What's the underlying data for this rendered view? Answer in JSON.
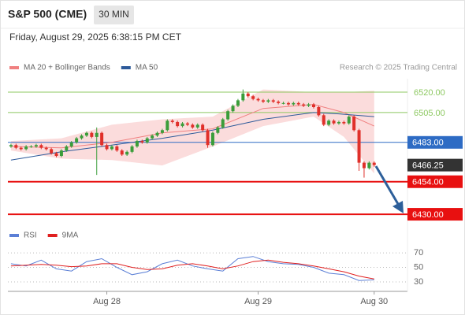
{
  "header": {
    "title": "S&P 500 (CME)",
    "interval": "30 MIN",
    "datetime": "Friday, August 29, 2025 6:38:15 PM CET"
  },
  "chart_data": [
    {
      "type": "candlestick",
      "credit": "Research © 2025 Trading Central",
      "up_color": "#3a9d3a",
      "down_color": "#e0302a",
      "xlim": [
        -0.3,
        78.6
      ],
      "ylim": [
        6422.5,
        6529.9
      ],
      "x": [
        0,
        1,
        2,
        3,
        4,
        5,
        6,
        7,
        8,
        9,
        10,
        11,
        12,
        13,
        14,
        15,
        16,
        17,
        18,
        19,
        20,
        21,
        22,
        23,
        24,
        25,
        26,
        27,
        28,
        29,
        30,
        31,
        32,
        33,
        34,
        35,
        36,
        37,
        38,
        39,
        40,
        41,
        42,
        43,
        44,
        45,
        46,
        47,
        48,
        49,
        50,
        51,
        52,
        53,
        54,
        55,
        56,
        57,
        58,
        59,
        60,
        61,
        62,
        63,
        64,
        65,
        66,
        67,
        68,
        69,
        70,
        71,
        72
      ],
      "open": [
        6480,
        6481,
        6479,
        6478,
        6480,
        6480,
        6481,
        6479,
        6478,
        6475,
        6473,
        6477,
        6480,
        6483,
        6486,
        6488,
        6490,
        6487,
        6490,
        6481,
        6478,
        6480,
        6477,
        6474,
        6476,
        6480,
        6484,
        6483,
        6486,
        6488,
        6490,
        6492,
        6499,
        6498,
        6495,
        6497,
        6496,
        6494,
        6496,
        6492,
        6481,
        6490,
        6494,
        6500,
        6506,
        6510,
        6514,
        6519,
        6517,
        6515,
        6514,
        6513,
        6514,
        6513,
        6512,
        6512,
        6511,
        6512,
        6511,
        6510,
        6511,
        6509,
        6503,
        6496,
        6499,
        6497,
        6498,
        6497,
        6502,
        6492,
        6468,
        6464,
        6468
      ],
      "high": [
        6482,
        6482,
        6480,
        6481,
        6481,
        6482,
        6482,
        6480,
        6479,
        6476,
        6478,
        6481,
        6484,
        6487,
        6489,
        6491,
        6491,
        6494,
        6491,
        6482,
        6481,
        6481,
        6478,
        6477,
        6481,
        6485,
        6485,
        6487,
        6489,
        6491,
        6493,
        6500,
        6500,
        6499,
        6498,
        6498,
        6497,
        6497,
        6497,
        6493,
        6491,
        6495,
        6501,
        6507,
        6511,
        6515,
        6522,
        6520,
        6518,
        6516,
        6515,
        6515,
        6515,
        6514,
        6513,
        6513,
        6513,
        6513,
        6512,
        6512,
        6512,
        6510,
        6504,
        6500,
        6500,
        6499,
        6499,
        6503,
        6503,
        6493,
        6469,
        6469,
        6469
      ],
      "low": [
        6479,
        6478,
        6477,
        6477,
        6479,
        6479,
        6478,
        6477,
        6474,
        6472,
        6472,
        6476,
        6479,
        6482,
        6485,
        6487,
        6486,
        6459,
        6480,
        6477,
        6477,
        6476,
        6473,
        6473,
        6475,
        6479,
        6482,
        6482,
        6485,
        6487,
        6489,
        6491,
        6497,
        6494,
        6494,
        6495,
        6493,
        6493,
        6491,
        6479,
        6480,
        6489,
        6493,
        6499,
        6505,
        6509,
        6513,
        6516,
        6514,
        6513,
        6512,
        6512,
        6512,
        6511,
        6511,
        6510,
        6510,
        6510,
        6509,
        6509,
        6508,
        6502,
        6495,
        6495,
        6496,
        6496,
        6496,
        6496,
        6491,
        6462,
        6457,
        6463,
        6465
      ],
      "close": [
        6481,
        6479,
        6478,
        6480,
        6480,
        6481,
        6479,
        6478,
        6475,
        6473,
        6477,
        6480,
        6483,
        6486,
        6488,
        6490,
        6487,
        6490,
        6481,
        6478,
        6480,
        6477,
        6474,
        6476,
        6480,
        6484,
        6483,
        6486,
        6488,
        6490,
        6492,
        6499,
        6498,
        6495,
        6497,
        6496,
        6494,
        6496,
        6492,
        6481,
        6490,
        6494,
        6500,
        6506,
        6510,
        6514,
        6519,
        6517,
        6515,
        6514,
        6513,
        6514,
        6513,
        6512,
        6512,
        6511,
        6512,
        6511,
        6510,
        6511,
        6509,
        6503,
        6496,
        6499,
        6497,
        6498,
        6497,
        6502,
        6492,
        6468,
        6464,
        6468,
        6466.25
      ],
      "series": [
        {
          "name": "MA 20 + Bollinger Bands",
          "type": "band",
          "color": "#f08080",
          "band_color": "#fbdcdc",
          "x": [
            0,
            10,
            20,
            30,
            40,
            50,
            60,
            66,
            72
          ],
          "values": [
            6480,
            6479,
            6483,
            6490,
            6493,
            6508,
            6511,
            6505,
            6495
          ],
          "upper": [
            6484,
            6486,
            6496,
            6500,
            6502,
            6522,
            6520,
            6520,
            6521
          ],
          "lower": [
            6477,
            6471,
            6470,
            6466,
            6480,
            6495,
            6502,
            6487,
            6460
          ]
        },
        {
          "name": "MA 50",
          "type": "line",
          "color": "#2d5a9a",
          "x": [
            0,
            10,
            20,
            30,
            40,
            50,
            60,
            65,
            72
          ],
          "values": [
            6470,
            6476,
            6481,
            6486,
            6492,
            6500,
            6505,
            6504,
            6502
          ]
        }
      ],
      "levels": [
        {
          "value": 6520,
          "label": "6520.00",
          "color": "#8cc860",
          "boxed": false,
          "line": true
        },
        {
          "value": 6505,
          "label": "6505.00",
          "color": "#8cc860",
          "boxed": false,
          "line": true
        },
        {
          "value": 6483,
          "label": "6483.00",
          "color": "#2d6bc4",
          "boxed": true,
          "line": true
        },
        {
          "value": 6466.25,
          "label": "6466.25",
          "color": "#333333",
          "boxed": true,
          "line": false
        },
        {
          "value": 6454,
          "label": "6454.00",
          "color": "#e81010",
          "boxed": true,
          "line": true
        },
        {
          "value": 6430,
          "label": "6430.00",
          "color": "#e81010",
          "boxed": true,
          "line": true
        }
      ]
    },
    {
      "type": "line",
      "xlim": [
        -0.3,
        78.6
      ],
      "ylim": [
        17,
        82
      ],
      "yticks": [
        30,
        50,
        70
      ],
      "xticks": [
        {
          "value": 19,
          "label": "Aug 28"
        },
        {
          "value": 49,
          "label": "Aug 29"
        },
        {
          "value": 72,
          "label": "Aug 30"
        }
      ],
      "series": [
        {
          "name": "RSI",
          "color": "#5b7fd6",
          "x": [
            0,
            3,
            6,
            9,
            12,
            15,
            18,
            21,
            24,
            27,
            30,
            33,
            36,
            39,
            42,
            45,
            48,
            51,
            54,
            57,
            60,
            63,
            66,
            69,
            72
          ],
          "values": [
            55,
            52,
            60,
            48,
            45,
            58,
            62,
            50,
            40,
            44,
            55,
            60,
            52,
            48,
            45,
            62,
            65,
            58,
            55,
            54,
            50,
            42,
            40,
            32,
            33
          ]
        },
        {
          "name": "9MA",
          "color": "#e02020",
          "x": [
            0,
            3,
            6,
            9,
            12,
            15,
            18,
            21,
            24,
            27,
            30,
            33,
            36,
            39,
            42,
            45,
            48,
            51,
            54,
            57,
            60,
            63,
            66,
            69,
            72
          ],
          "values": [
            52,
            53,
            54,
            53,
            51,
            52,
            55,
            55,
            50,
            47,
            48,
            53,
            55,
            52,
            48,
            52,
            58,
            60,
            57,
            55,
            52,
            48,
            44,
            38,
            34
          ]
        }
      ]
    }
  ]
}
